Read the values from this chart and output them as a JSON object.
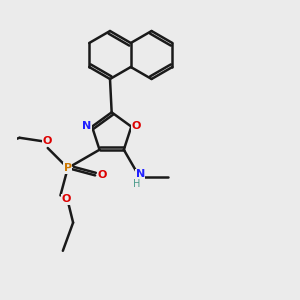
{
  "bg": "#ebebeb",
  "bond_color": "#1a1a1a",
  "N_color": "#2020ff",
  "O_color": "#dd0000",
  "P_color": "#cc7700",
  "H_color": "#4a9a8a",
  "lw": 1.8,
  "figsize": [
    3.0,
    3.0
  ],
  "dpi": 100,
  "xlim": [
    -2.5,
    5.5
  ],
  "ylim": [
    -4.5,
    4.5
  ]
}
